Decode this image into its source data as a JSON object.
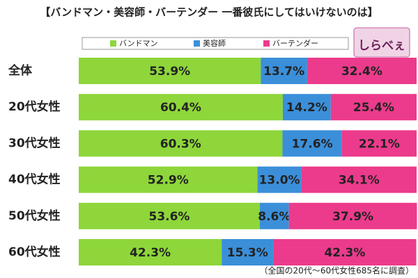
{
  "chart_data": {
    "type": "stacked-barh",
    "title": "【バンドマン・美容師・バーテンダー 一番彼氏にしてはいけないのは】",
    "logo": "しらべぇ",
    "note": "（全国の20代～60代女性685名に調査）",
    "categories": [
      "全体",
      "20代女性",
      "30代女性",
      "40代女性",
      "50代女性",
      "60代女性"
    ],
    "xlim": [
      0,
      100
    ],
    "series": [
      {
        "name": "バンドマン",
        "color": "#8ed63a",
        "values": [
          53.9,
          60.4,
          60.3,
          52.9,
          53.6,
          42.3
        ],
        "value_labels": [
          "53.9%",
          "60.4%",
          "60.3%",
          "52.9%",
          "53.6%",
          "42.3%"
        ]
      },
      {
        "name": "美容師",
        "color": "#3b8fd9",
        "values": [
          13.7,
          14.2,
          17.6,
          13.0,
          8.6,
          15.3
        ],
        "value_labels": [
          "13.7%",
          "14.2%",
          "17.6%",
          "13.0%",
          "8.6%",
          "15.3%"
        ]
      },
      {
        "name": "バーテンダー",
        "color": "#ec3b8c",
        "values": [
          32.4,
          25.4,
          22.1,
          34.1,
          37.9,
          42.3
        ],
        "value_labels": [
          "32.4%",
          "25.4%",
          "22.1%",
          "34.1%",
          "37.9%",
          "42.3%"
        ]
      }
    ]
  }
}
